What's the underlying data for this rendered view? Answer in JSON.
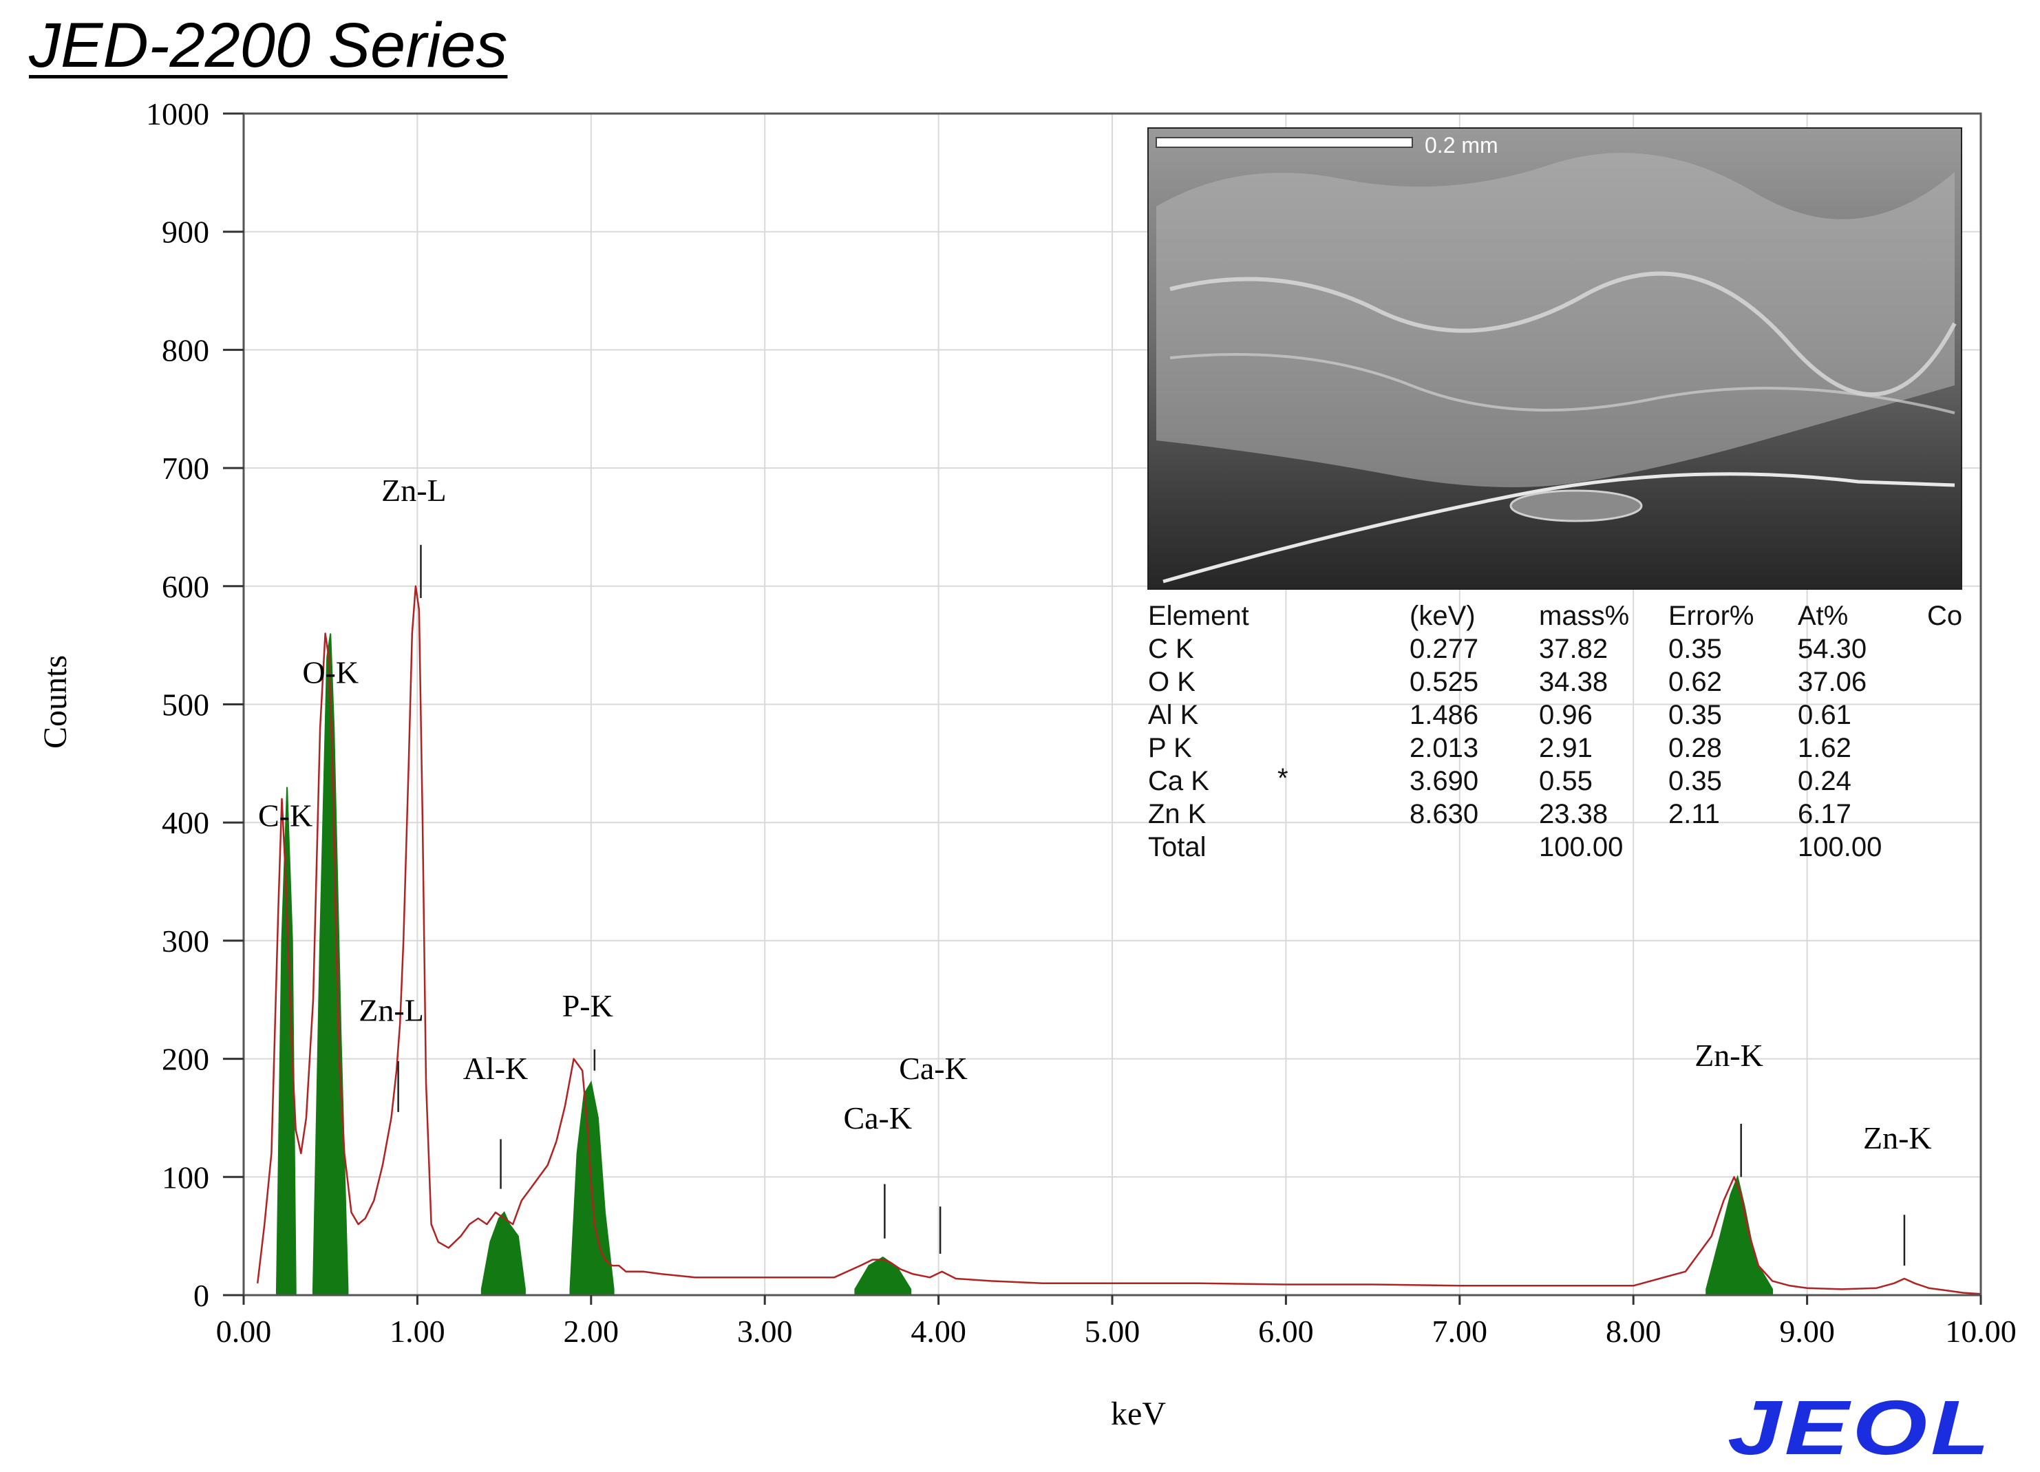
{
  "header": {
    "title": "JED-2200 Series"
  },
  "logo": {
    "text": "JEOL",
    "color": "#1a2ee0"
  },
  "chart_data": {
    "type": "line",
    "xlabel": "keV",
    "ylabel": "Counts",
    "xlim": [
      0,
      10
    ],
    "ylim": [
      0,
      1000
    ],
    "grid": true,
    "x_ticks": [
      "0.00",
      "1.00",
      "2.00",
      "3.00",
      "4.00",
      "5.00",
      "6.00",
      "7.00",
      "8.00",
      "9.00",
      "10.00"
    ],
    "y_ticks": [
      "0",
      "100",
      "200",
      "300",
      "400",
      "500",
      "600",
      "700",
      "800",
      "900",
      "1000"
    ],
    "spectrum_color": "#b22222",
    "fill_color": "#137a13",
    "spectrum": {
      "x": [
        0.08,
        0.12,
        0.16,
        0.2,
        0.22,
        0.24,
        0.26,
        0.28,
        0.3,
        0.33,
        0.36,
        0.4,
        0.44,
        0.47,
        0.49,
        0.51,
        0.53,
        0.55,
        0.58,
        0.62,
        0.66,
        0.7,
        0.75,
        0.8,
        0.85,
        0.88,
        0.9,
        0.92,
        0.95,
        0.97,
        0.99,
        1.01,
        1.03,
        1.05,
        1.08,
        1.12,
        1.18,
        1.25,
        1.3,
        1.35,
        1.4,
        1.45,
        1.5,
        1.55,
        1.6,
        1.65,
        1.7,
        1.75,
        1.8,
        1.85,
        1.9,
        1.95,
        1.98,
        2.0,
        2.02,
        2.05,
        2.08,
        2.12,
        2.16,
        2.2,
        2.3,
        2.4,
        2.6,
        2.8,
        3.0,
        3.2,
        3.4,
        3.55,
        3.62,
        3.68,
        3.72,
        3.78,
        3.85,
        3.95,
        4.02,
        4.1,
        4.3,
        4.6,
        5.0,
        5.5,
        6.0,
        6.5,
        7.0,
        7.5,
        8.0,
        8.3,
        8.45,
        8.52,
        8.58,
        8.62,
        8.66,
        8.72,
        8.8,
        8.9,
        9.0,
        9.2,
        9.4,
        9.5,
        9.56,
        9.62,
        9.7,
        9.8,
        9.9,
        10.0
      ],
      "y": [
        10,
        60,
        120,
        330,
        420,
        360,
        280,
        200,
        140,
        120,
        150,
        250,
        480,
        560,
        540,
        460,
        320,
        200,
        120,
        70,
        60,
        65,
        80,
        110,
        150,
        190,
        230,
        300,
        450,
        560,
        600,
        580,
        400,
        180,
        60,
        45,
        40,
        50,
        60,
        65,
        60,
        70,
        65,
        60,
        80,
        90,
        100,
        110,
        130,
        160,
        200,
        190,
        140,
        95,
        60,
        40,
        30,
        25,
        25,
        20,
        20,
        18,
        15,
        15,
        15,
        15,
        15,
        25,
        30,
        30,
        28,
        22,
        18,
        15,
        20,
        14,
        12,
        10,
        10,
        10,
        9,
        9,
        8,
        8,
        8,
        20,
        50,
        80,
        100,
        85,
        55,
        25,
        12,
        8,
        6,
        5,
        6,
        10,
        14,
        10,
        6,
        4,
        2,
        1
      ]
    },
    "filled_peaks": [
      {
        "name": "C-K",
        "x": [
          0.19,
          0.22,
          0.25,
          0.28,
          0.3
        ],
        "y": [
          5,
          300,
          430,
          300,
          5
        ]
      },
      {
        "name": "O-K",
        "x": [
          0.4,
          0.44,
          0.48,
          0.5,
          0.52,
          0.56,
          0.6
        ],
        "y": [
          5,
          300,
          540,
          560,
          480,
          220,
          5
        ]
      },
      {
        "name": "Al-K",
        "x": [
          1.37,
          1.42,
          1.47,
          1.5,
          1.53,
          1.58,
          1.62
        ],
        "y": [
          5,
          45,
          65,
          70,
          60,
          50,
          5
        ]
      },
      {
        "name": "P-K",
        "x": [
          1.88,
          1.92,
          1.96,
          2.0,
          2.04,
          2.08,
          2.13
        ],
        "y": [
          5,
          120,
          170,
          180,
          150,
          70,
          5
        ]
      },
      {
        "name": "Ca-K",
        "x": [
          3.52,
          3.6,
          3.68,
          3.76,
          3.84
        ],
        "y": [
          5,
          25,
          32,
          24,
          5
        ]
      },
      {
        "name": "Zn-K",
        "x": [
          8.42,
          8.5,
          8.56,
          8.6,
          8.64,
          8.7,
          8.8
        ],
        "y": [
          5,
          50,
          85,
          100,
          75,
          30,
          5
        ]
      }
    ],
    "peak_labels": [
      {
        "text": "Zn-L",
        "x": 0.98,
        "y": 672,
        "marker": 1.02,
        "marker_y": [
          590,
          635
        ]
      },
      {
        "text": "O-K",
        "x": 0.5,
        "y": 518,
        "marker": null,
        "marker_y": null
      },
      {
        "text": "C-K",
        "x": 0.24,
        "y": 397,
        "marker": null,
        "marker_y": null
      },
      {
        "text": "Zn-L",
        "x": 0.85,
        "y": 232,
        "marker": 0.89,
        "marker_y": [
          155,
          198
        ]
      },
      {
        "text": "P-K",
        "x": 1.98,
        "y": 236,
        "marker": 2.02,
        "marker_y": [
          190,
          208
        ]
      },
      {
        "text": "Al-K",
        "x": 1.45,
        "y": 183,
        "marker": 1.48,
        "marker_y": [
          90,
          132
        ]
      },
      {
        "text": "Ca-K",
        "x": 3.97,
        "y": 183,
        "marker": 4.01,
        "marker_y": [
          35,
          75
        ]
      },
      {
        "text": "Ca-K",
        "x": 3.65,
        "y": 141,
        "marker": 3.69,
        "marker_y": [
          48,
          94
        ]
      },
      {
        "text": "Zn-K",
        "x": 8.55,
        "y": 194,
        "marker": 8.62,
        "marker_y": [
          100,
          145
        ]
      },
      {
        "text": "Zn-K",
        "x": 9.52,
        "y": 124,
        "marker": 9.56,
        "marker_y": [
          25,
          68
        ]
      }
    ]
  },
  "inset": {
    "scale_bar": "0.2 mm",
    "table": {
      "headers": [
        "Element",
        "(keV)",
        "mass%",
        "Error%",
        "At%",
        "Co"
      ],
      "rows": [
        [
          "C  K",
          "",
          "0.277",
          "37.82",
          "0.35",
          "54.30"
        ],
        [
          "O  K",
          "",
          "0.525",
          "34.38",
          "0.62",
          "37.06"
        ],
        [
          "Al K",
          "",
          "1.486",
          "0.96",
          "0.35",
          "0.61"
        ],
        [
          "P  K",
          "",
          "2.013",
          "2.91",
          "0.28",
          "1.62"
        ],
        [
          "Ca K",
          "*",
          "3.690",
          "0.55",
          "0.35",
          "0.24"
        ],
        [
          "Zn K",
          "",
          "8.630",
          "23.38",
          "2.11",
          "6.17"
        ],
        [
          "Total",
          "",
          "",
          "100.00",
          "",
          "100.00"
        ]
      ]
    }
  }
}
